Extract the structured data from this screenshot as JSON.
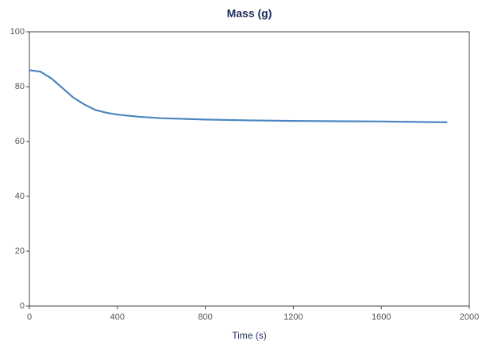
{
  "chart_data": {
    "type": "line",
    "title": "Mass (g)",
    "x_label": "Time (s)",
    "x": [
      0,
      50,
      100,
      150,
      200,
      250,
      300,
      350,
      400,
      500,
      600,
      800,
      1000,
      1200,
      1400,
      1600,
      1900
    ],
    "series": [
      {
        "name": "Mass",
        "color": "#4a86c0",
        "values": [
          86,
          85.5,
          83,
          79.5,
          76,
          73.5,
          71.5,
          70.5,
          69.8,
          69,
          68.5,
          68,
          67.7,
          67.5,
          67.4,
          67.3,
          67
        ]
      }
    ],
    "xlim": [
      0,
      2000
    ],
    "xticks": [
      0,
      400,
      800,
      1200,
      1600,
      2000
    ],
    "ylim": [
      0,
      100
    ],
    "yticks": [
      0,
      20,
      40,
      60,
      80,
      100
    ]
  }
}
